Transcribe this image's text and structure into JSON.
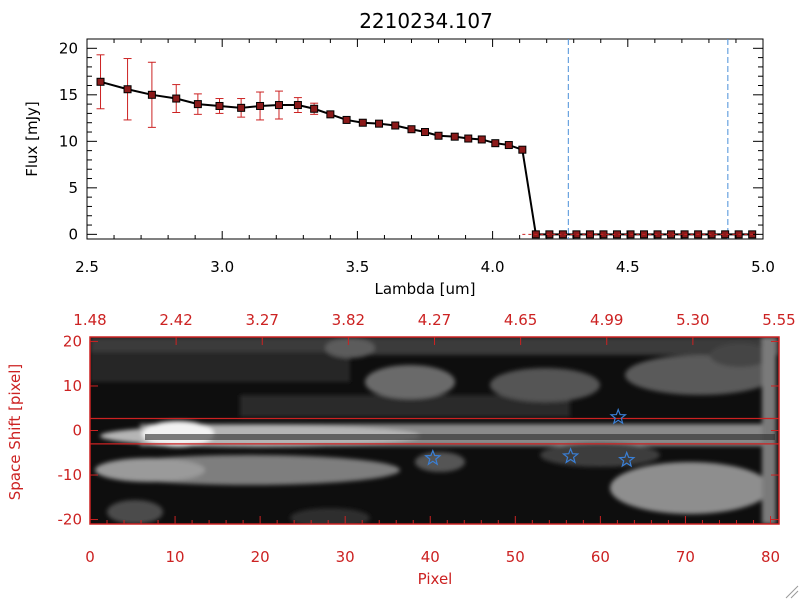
{
  "chart_data": [
    {
      "type": "line",
      "title": "2210234.107",
      "xlabel": "Lambda [um]",
      "ylabel": "Flux [mJy]",
      "xlim": [
        2.5,
        5.0
      ],
      "ylim": [
        -0.5,
        21
      ],
      "x_ticks": [
        "2.5",
        "3.0",
        "3.5",
        "4.0",
        "4.5",
        "5.0"
      ],
      "y_ticks": [
        "0",
        "5",
        "10",
        "15",
        "20"
      ],
      "series": [
        {
          "name": "Flux",
          "color": "#000000",
          "marker_color": "#8b1a1a",
          "x": [
            2.55,
            2.65,
            2.74,
            2.83,
            2.91,
            2.99,
            3.07,
            3.14,
            3.21,
            3.28,
            3.34,
            3.4,
            3.46,
            3.52,
            3.58,
            3.64,
            3.7,
            3.75,
            3.8,
            3.86,
            3.91,
            3.96,
            4.01,
            4.06,
            4.11,
            4.16,
            4.21,
            4.26,
            4.31,
            4.36,
            4.41,
            4.46,
            4.51,
            4.56,
            4.61,
            4.66,
            4.71,
            4.76,
            4.81,
            4.86,
            4.91,
            4.96
          ],
          "y": [
            16.4,
            15.6,
            15.0,
            14.6,
            14.0,
            13.8,
            13.6,
            13.8,
            13.9,
            13.9,
            13.5,
            12.9,
            12.3,
            12.0,
            11.9,
            11.7,
            11.3,
            11.0,
            10.6,
            10.5,
            10.3,
            10.2,
            9.8,
            9.6,
            9.1,
            0.0,
            0.0,
            0.0,
            0.0,
            0.0,
            0.0,
            0.0,
            0.0,
            0.0,
            0.0,
            0.0,
            0.0,
            0.0,
            0.0,
            0.0,
            0.0,
            0.0
          ],
          "yerr": [
            2.9,
            3.3,
            3.5,
            1.5,
            1.1,
            0.8,
            1.0,
            1.5,
            1.5,
            0.8,
            0.6,
            0,
            0,
            0,
            0,
            0,
            0,
            0,
            0,
            0,
            0,
            0,
            0,
            0,
            0,
            0,
            0,
            0,
            0,
            0,
            0,
            0,
            0,
            0,
            0,
            0,
            0,
            0,
            0,
            0,
            0,
            0
          ]
        }
      ],
      "vlines": {
        "x": [
          4.28,
          4.87
        ],
        "color": "#4a8fd8"
      }
    },
    {
      "type": "heatmap",
      "xlabel": "Pixel",
      "ylabel": "Space Shift [pixel]",
      "xlim": [
        0,
        81
      ],
      "ylim": [
        -21,
        21
      ],
      "x_ticks": [
        "0",
        "10",
        "20",
        "30",
        "40",
        "50",
        "60",
        "70",
        "80"
      ],
      "y_ticks": [
        "-20",
        "-10",
        "0",
        "10",
        "20"
      ],
      "top_ticks": [
        "1.48",
        "2.42",
        "3.27",
        "3.82",
        "4.27",
        "4.65",
        "4.99",
        "5.30",
        "5.55"
      ],
      "axis_color": "#cc2222",
      "aperture_lines": [
        2.7,
        -3.0
      ],
      "stars": {
        "color": "#3a7fd5",
        "points": [
          [
            40.3,
            -6.2
          ],
          [
            56.5,
            -5.8
          ],
          [
            62.1,
            3.0
          ],
          [
            63.1,
            -6.6
          ]
        ]
      }
    }
  ]
}
